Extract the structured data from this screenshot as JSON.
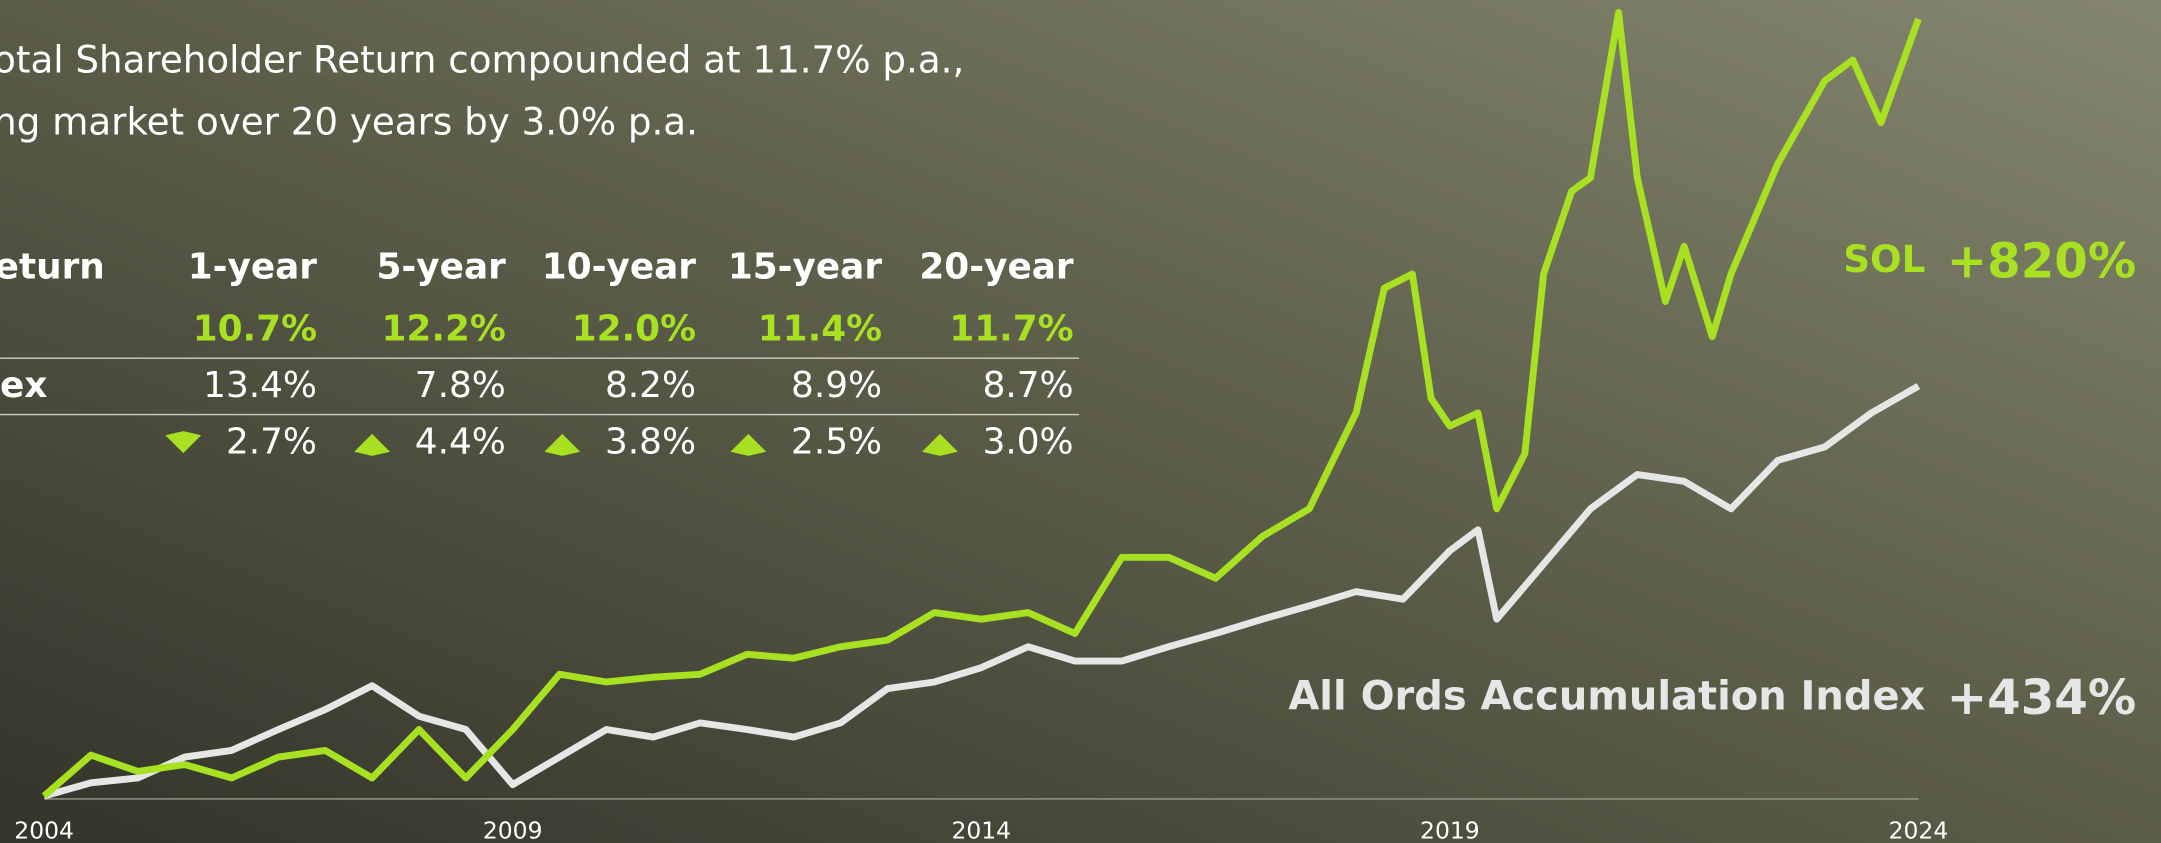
{
  "header": {
    "lines": [
      "otal Shareholder Return compounded at 11.7% p.a.,",
      "ng market over 20 years by 3.0% p.a."
    ]
  },
  "table": {
    "headers": [
      "return",
      "1-year",
      "5-year",
      "10-year",
      "15-year",
      "20-year"
    ],
    "rows": [
      {
        "values": [
          "10.7%",
          "12.2%",
          "12.0%",
          "11.4%",
          "11.7%"
        ],
        "color": "#a8e022",
        "bold": true
      },
      {
        "label": "ex",
        "values": [
          "13.4%",
          "7.8%",
          "8.2%",
          "8.9%",
          "8.7%"
        ],
        "color": "#ffffff",
        "bold": false
      },
      {
        "values": [
          "2.7%",
          "4.4%",
          "3.8%",
          "2.5%",
          "3.0%"
        ],
        "color": "#ffffff",
        "bold": false,
        "direction": [
          "down",
          "up",
          "up",
          "up",
          "up"
        ],
        "marker_color": "#a8e022"
      }
    ]
  },
  "chart_data": {
    "type": "line",
    "xlim": [
      2004,
      2024
    ],
    "xticks": [
      2004,
      2009,
      2014,
      2019,
      2024
    ],
    "ylim": [
      0,
      840
    ],
    "series": [
      {
        "name": "SOL",
        "end_label": "+820%",
        "color": "#a8e022",
        "x": [
          2004,
          2004.5,
          2005,
          2005.5,
          2006,
          2006.5,
          2007,
          2007.5,
          2008,
          2008.5,
          2009,
          2009.5,
          2010,
          2010.5,
          2011,
          2011.5,
          2012,
          2012.5,
          2013,
          2013.5,
          2014,
          2014.5,
          2015,
          2015.5,
          2016,
          2016.5,
          2017,
          2017.5,
          2018,
          2018.3,
          2018.6,
          2018.8,
          2019,
          2019.3,
          2019.5,
          2019.8,
          2020,
          2020.3,
          2020.5,
          2020.8,
          2021,
          2021.3,
          2021.5,
          2021.8,
          2022,
          2022.5,
          2023,
          2023.3,
          2023.6,
          2024
        ],
        "values": [
          3,
          46,
          29,
          36,
          22,
          44,
          51,
          22,
          73,
          22,
          73,
          131,
          123,
          128,
          131,
          152,
          148,
          160,
          167,
          196,
          189,
          196,
          174,
          254,
          254,
          232,
          276,
          305,
          406,
          537,
          552,
          421,
          392,
          406,
          305,
          363,
          552,
          639,
          653,
          827,
          653,
          523,
          581,
          486,
          552,
          668,
          755,
          777,
          711,
          820
        ]
      },
      {
        "name": "All Ords Accumulation Index",
        "end_label": "+434%",
        "color": "#e6e6e6",
        "x": [
          2004,
          2004.5,
          2005,
          2005.5,
          2006,
          2006.5,
          2007,
          2007.5,
          2008,
          2008.5,
          2009,
          2009.5,
          2010,
          2010.5,
          2011,
          2011.5,
          2012,
          2012.5,
          2013,
          2013.5,
          2014,
          2014.5,
          2015,
          2015.5,
          2016,
          2016.5,
          2017,
          2017.5,
          2018,
          2018.5,
          2019,
          2019.3,
          2019.5,
          2020,
          2020.5,
          2021,
          2021.5,
          2022,
          2022.5,
          2023,
          2023.5,
          2024
        ],
        "values": [
          3,
          17,
          22,
          44,
          51,
          73,
          94,
          119,
          87,
          73,
          15,
          44,
          73,
          65,
          80,
          73,
          65,
          80,
          116,
          123,
          138,
          160,
          145,
          145,
          160,
          174,
          189,
          203,
          218,
          210,
          261,
          283,
          189,
          247,
          305,
          341,
          334,
          305,
          356,
          370,
          406,
          434
        ]
      }
    ]
  }
}
